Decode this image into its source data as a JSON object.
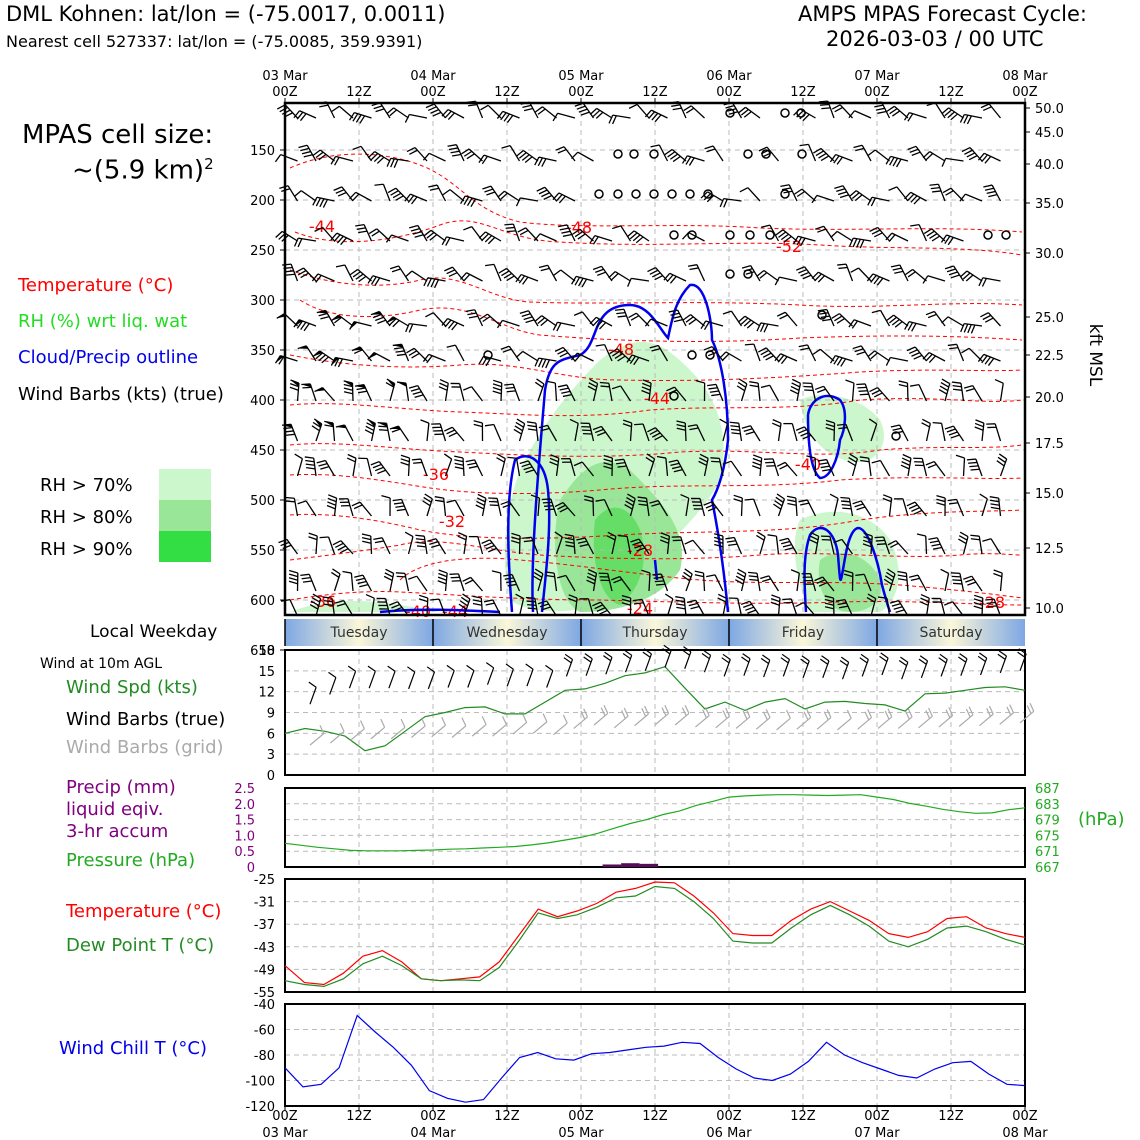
{
  "header": {
    "station_line": "DML Kohnen: lat/lon = (-75.0017, 0.0011)",
    "cell_line": "Nearest cell 527337: lat/lon = (-75.0085, 359.9391)",
    "cycle_line1": "AMPS MPAS Forecast Cycle:",
    "cycle_line2": "2026-03-03 / 00 UTC",
    "cell_size_label": "MPAS cell size:",
    "cell_size_value": "~(5.9 km)",
    "cell_size_sup": "2"
  },
  "legend": {
    "temperature": "Temperature (°C)",
    "rh": "RH (%) wrt liq. wat",
    "cloud": "Cloud/Precip outline",
    "barbs": "Wind Barbs (kts) (true)",
    "rh70": "RH > 70%",
    "rh80": "RH > 80%",
    "rh90": "RH > 90%",
    "colors": {
      "rh70": "#ccf7cc",
      "rh80": "#99e699",
      "rh90": "#33dd44",
      "temp": "#ff0000",
      "cloud": "#0000ee"
    }
  },
  "top_axis": {
    "dates": [
      "03 Mar",
      "04 Mar",
      "05 Mar",
      "06 Mar",
      "07 Mar",
      "08 Mar"
    ],
    "hours": [
      "00Z",
      "12Z",
      "00Z",
      "12Z",
      "00Z",
      "12Z",
      "00Z",
      "12Z",
      "00Z",
      "12Z",
      "00Z"
    ]
  },
  "bottom_axis": {
    "hours": [
      "00Z",
      "12Z",
      "00Z",
      "12Z",
      "00Z",
      "12Z",
      "00Z",
      "12Z",
      "00Z",
      "12Z",
      "00Z"
    ],
    "dates": [
      "03 Mar",
      "04 Mar",
      "05 Mar",
      "06 Mar",
      "07 Mar",
      "08 Mar"
    ]
  },
  "weekday": {
    "label": "Local Weekday",
    "days": [
      "Tuesday",
      "Wednesday",
      "Thursday",
      "Friday",
      "Saturday"
    ]
  },
  "wind_panel": {
    "header": "Wind at 10m AGL",
    "spd_label": "Wind Spd (kts)",
    "true_label": "Wind Barbs (true)",
    "grid_label": "Wind Barbs (grid)"
  },
  "precip_panel": {
    "line1": "Precip (mm)",
    "line2": "liquid eqiv.",
    "line3": "3-hr accum",
    "pressure_label": "Pressure (hPa)",
    "unit": "(hPa)"
  },
  "temp_panel": {
    "temp_label": "Temperature (°C)",
    "dew_label": "Dew Point T (°C)"
  },
  "chill_panel": {
    "label": "Wind Chill T (°C)"
  },
  "chart_data": [
    {
      "type": "heatmap",
      "name": "cross-section",
      "y_left_ticks": [
        "150",
        "200",
        "250",
        "300",
        "350",
        "400",
        "450",
        "500",
        "550",
        "600",
        "650"
      ],
      "y_right_ticks": [
        "50.0",
        "45.0",
        "40.0",
        "35.0",
        "30.0",
        "25.0",
        "22.5",
        "20.0",
        "17.5",
        "15.0",
        "12.5",
        "10.0"
      ],
      "y_right_label": "kft MSL",
      "temp_contour_labels": [
        "-44",
        "-48",
        "-52",
        "-48",
        "-44",
        "-40",
        "-36",
        "-32",
        "-28",
        "-24",
        "-36",
        "-40",
        "-44",
        "-28"
      ]
    },
    {
      "type": "line",
      "name": "wind-speed",
      "x_hours": [
        0,
        3,
        6,
        9,
        12,
        15,
        18,
        21,
        24,
        27,
        30,
        33,
        36,
        39,
        42,
        45,
        48,
        51,
        54,
        57,
        60,
        63,
        66,
        69,
        72,
        75,
        78,
        81,
        84,
        87,
        90,
        93,
        96,
        99,
        102,
        105,
        108,
        111,
        114,
        117,
        120
      ],
      "ylim": [
        0,
        18
      ],
      "yticks": [
        "0",
        "3",
        "6",
        "9",
        "12",
        "15",
        "18"
      ],
      "series": [
        {
          "values": [
            6,
            6.7,
            6.3,
            5.6,
            3.5,
            4.2,
            6.3,
            8.4,
            9,
            9.7,
            9.8,
            8.8,
            8.8,
            10.5,
            12.2,
            12.4,
            13.2,
            14.3,
            14.7,
            15.6,
            12.5,
            9.5,
            10.5,
            9.3,
            10.5,
            11,
            9.5,
            10.5,
            10.6,
            10.3,
            10.1,
            9.2,
            11.7,
            11.8,
            12.2,
            12.6,
            12.7,
            12.2
          ],
          "color": "#228b22"
        },
        {
          "values": [
            10.2,
            11.6,
            12.5,
            12.5,
            12.5,
            12.4,
            12.4,
            12.6,
            12.6,
            13,
            12.8,
            12.8,
            12.6,
            14.2,
            14.3,
            14.5,
            14.8,
            15,
            15.5,
            15.3,
            14.8,
            14.2,
            14.3,
            14.1,
            14.2,
            14,
            14,
            13.8,
            14.2,
            14.4,
            13.8,
            14,
            14.2,
            14.3,
            14.4,
            14.7,
            15
          ],
          "color": "#000000"
        },
        {
          "values": [
            4.3,
            4.6,
            5,
            5.2,
            5.2,
            5.4,
            5.5,
            5.4,
            5.6,
            5.6,
            5.9,
            6,
            5.8,
            6.7,
            7.2,
            6.8,
            7.1,
            7.2,
            7.2,
            6.9,
            6.8,
            6.7,
            6.6,
            6.5,
            6.6,
            6.6,
            6.5,
            6.6,
            6.7,
            6.7,
            6.8,
            6.9,
            7,
            7.1,
            7.3,
            7.5
          ],
          "color": "#aaaaaa"
        }
      ]
    },
    {
      "type": "line",
      "name": "precip-pressure",
      "yticks_left": [
        "0",
        "0.5",
        "1.0",
        "1.5",
        "2.0",
        "2.5"
      ],
      "yticks_right": [
        "667",
        "671",
        "675",
        "679",
        "683",
        "687"
      ],
      "ylim_left": [
        0,
        2.5
      ],
      "ylim_right": [
        667,
        687
      ],
      "pressure": [
        673,
        672.5,
        672,
        671.6,
        671.2,
        671.1,
        671.1,
        671.1,
        671.2,
        671.3,
        671.5,
        671.6,
        671.8,
        672,
        672.2,
        672.6,
        673.1,
        673.8,
        674.5,
        675.5,
        676.8,
        678,
        679,
        680.3,
        681.2,
        682.6,
        683.6,
        684.7,
        685,
        685.2,
        685.3,
        685.3,
        685.2,
        685.1,
        685.2,
        685.3,
        684.7,
        684.1,
        683.1,
        682.4,
        681.6,
        681.0,
        680.6,
        680.7,
        681.5,
        682
      ],
      "precip_bars": [
        {
          "x": 53,
          "v": 0.08
        },
        {
          "x": 56,
          "v": 0.12
        },
        {
          "x": 59,
          "v": 0.1
        }
      ]
    },
    {
      "type": "line",
      "name": "temperature-dewpoint",
      "ylim": [
        -55,
        -25
      ],
      "yticks": [
        "-25",
        "-31",
        "-37",
        "-43",
        "-49",
        "-55"
      ],
      "series": [
        {
          "name": "Temperature (°C)",
          "values": [
            -48,
            -52.5,
            -53,
            -50,
            -45.5,
            -44,
            -47,
            -51.5,
            -52,
            -51.5,
            -51,
            -47,
            -40,
            -33,
            -35,
            -33.5,
            -31.5,
            -28.5,
            -27.5,
            -25.8,
            -26,
            -29.5,
            -34,
            -39.5,
            -40,
            -40,
            -36,
            -33,
            -31,
            -33.5,
            -36,
            -39.5,
            -40.5,
            -39,
            -35.5,
            -35,
            -38,
            -39.5,
            -40.5
          ],
          "color": "#ff0000"
        },
        {
          "name": "Dew Point T (°C)",
          "values": [
            -52,
            -53,
            -53.5,
            -51.5,
            -47.5,
            -45.5,
            -48,
            -51.5,
            -52,
            -51.8,
            -52,
            -48.5,
            -41.5,
            -34,
            -35.5,
            -34.5,
            -32.5,
            -30,
            -29.5,
            -27,
            -27.5,
            -31,
            -35.5,
            -41.5,
            -42,
            -42,
            -38,
            -34.5,
            -32,
            -34.5,
            -37.5,
            -41.5,
            -43,
            -41,
            -38,
            -37.5,
            -39,
            -41,
            -42.5
          ],
          "color": "#228b22"
        }
      ]
    },
    {
      "type": "line",
      "name": "wind-chill",
      "ylim": [
        -120,
        -40
      ],
      "yticks": [
        "-40",
        "-60",
        "-80",
        "-100",
        "-120"
      ],
      "series": [
        {
          "name": "Wind Chill T (°C)",
          "values": [
            -90,
            -105,
            -103,
            -90,
            -49,
            -62,
            -74,
            -88,
            -108,
            -114,
            -117,
            -115,
            -98,
            -82,
            -78,
            -83,
            -84,
            -79,
            -78,
            -76,
            -74,
            -73,
            -70,
            -71,
            -82,
            -91,
            -98,
            -100,
            -95,
            -85,
            -70,
            -80,
            -86,
            -91,
            -96,
            -98,
            -91,
            -86,
            -85,
            -95,
            -103,
            -104
          ],
          "color": "#0000ee"
        }
      ]
    }
  ]
}
